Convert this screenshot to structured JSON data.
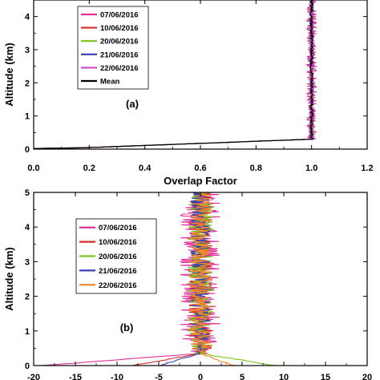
{
  "chart_data": [
    {
      "id": "a",
      "type": "line",
      "panel_label": "(a)",
      "xlabel": "Overlap Factor",
      "ylabel": "Altitude (km)",
      "xlim": [
        0.0,
        1.2
      ],
      "ylim": [
        0,
        4.5
      ],
      "xticks": [
        "0.0",
        "0.2",
        "0.4",
        "0.6",
        "0.8",
        "1.0",
        "1.2"
      ],
      "yticks": [
        "0",
        "1",
        "2",
        "3",
        "4"
      ],
      "xtick_values": [
        0.0,
        0.2,
        0.4,
        0.6,
        0.8,
        1.0,
        1.2
      ],
      "ytick_values": [
        0,
        1,
        2,
        3,
        4
      ],
      "legend_position": "upper-left",
      "series": [
        {
          "name": "07/06/2016",
          "color": "#e0309a",
          "noise": 0.018,
          "seed": 11,
          "tail": 0.0
        },
        {
          "name": "10/06/2016",
          "color": "#d62a2a",
          "noise": 0.006,
          "seed": 23,
          "tail": 0.0
        },
        {
          "name": "20/06/2016",
          "color": "#7ac51e",
          "noise": 0.008,
          "seed": 37,
          "tail": 0.0
        },
        {
          "name": "21/06/2016",
          "color": "#3a3fb0",
          "noise": 0.007,
          "seed": 41,
          "tail": 0.0
        },
        {
          "name": "22/06/2016",
          "color": "#c74bc9",
          "noise": 0.01,
          "seed": 53,
          "tail": 0.0
        },
        {
          "name": "Mean",
          "color": "#000000",
          "noise": 0.005,
          "seed": 67,
          "tail": 0.0
        }
      ]
    },
    {
      "id": "b",
      "type": "line",
      "panel_label": "(b)",
      "xlabel": "",
      "ylabel": "Altitude (km)",
      "xlim": [
        -20,
        20
      ],
      "ylim": [
        0,
        5
      ],
      "xticks": [
        "-20",
        "-15",
        "-10",
        "-5",
        "0",
        "5",
        "10",
        "15",
        "20"
      ],
      "yticks": [
        "0",
        "1",
        "2",
        "3",
        "4",
        "5"
      ],
      "xtick_values": [
        -20,
        -15,
        -10,
        -5,
        0,
        5,
        10,
        15,
        20
      ],
      "ytick_values": [
        0,
        1,
        2,
        3,
        4,
        5
      ],
      "legend_position": "upper-left",
      "series": [
        {
          "name": "07/06/2016",
          "color": "#e0309a",
          "noise": 2.4,
          "seed": 101,
          "tail": -19.0
        },
        {
          "name": "10/06/2016",
          "color": "#d62a2a",
          "noise": 1.4,
          "seed": 113,
          "tail": -8.0
        },
        {
          "name": "20/06/2016",
          "color": "#7ac51e",
          "noise": 1.6,
          "seed": 127,
          "tail": 9.0
        },
        {
          "name": "21/06/2016",
          "color": "#3a3fb0",
          "noise": 1.2,
          "seed": 139,
          "tail": -5.0
        },
        {
          "name": "22/06/2016",
          "color": "#f08a2a",
          "noise": 1.3,
          "seed": 151,
          "tail": 4.0
        }
      ]
    }
  ]
}
